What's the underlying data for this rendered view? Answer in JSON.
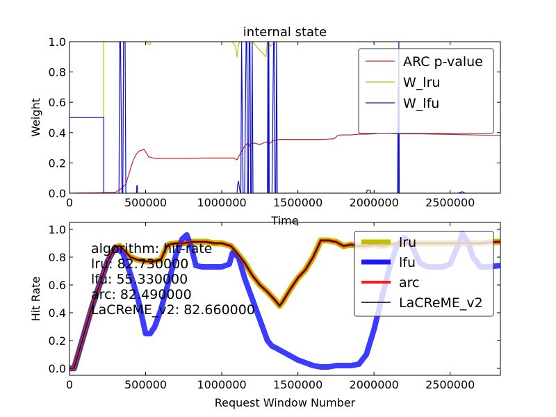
{
  "chart_data": [
    {
      "type": "line",
      "title": "internal state",
      "xlabel": "Time",
      "ylabel": "Weight",
      "xlim": [
        0,
        2830000
      ],
      "ylim": [
        0.0,
        1.0
      ],
      "grid": false,
      "legend_position": "top-right",
      "x_ticks": [
        0,
        500000,
        1000000,
        1500000,
        2000000,
        2500000
      ],
      "x_tick_labels": [
        "0",
        "500000",
        "1000000",
        "1500000",
        "2000000",
        "2500000"
      ],
      "y_ticks": [
        0.0,
        0.2,
        0.4,
        0.6,
        0.8,
        1.0
      ],
      "y_tick_labels": [
        "0.0",
        "0.2",
        "0.4",
        "0.6",
        "0.8",
        "1.0"
      ],
      "series": [
        {
          "name": "ARC p-value",
          "color": "#d62020",
          "x": [
            0,
            300000,
            340000,
            370000,
            400000,
            420000,
            440000,
            460000,
            490000,
            520000,
            560000,
            600000,
            700000,
            800000,
            900000,
            1000000,
            1080000,
            1100000,
            1110000,
            1150000,
            1170000,
            1180000,
            1190000,
            1220000,
            1250000,
            1270000,
            1300000,
            1310000,
            1340000,
            1360000,
            1380000,
            1400000,
            1450000,
            1500000,
            1550000,
            1600000,
            1650000,
            1700000,
            1740000,
            1760000,
            1780000,
            1800000,
            1850000,
            1900000,
            1950000,
            2000000,
            2030000,
            2100000,
            2150000,
            2200000,
            2300000,
            2400000,
            2500000,
            2600000,
            2700000,
            2800000,
            2830000
          ],
          "y": [
            0.0,
            0.005,
            0.03,
            0.06,
            0.16,
            0.22,
            0.26,
            0.28,
            0.29,
            0.24,
            0.23,
            0.23,
            0.23,
            0.23,
            0.232,
            0.232,
            0.232,
            0.22,
            0.24,
            0.31,
            0.33,
            0.31,
            0.33,
            0.33,
            0.32,
            0.33,
            0.34,
            0.325,
            0.35,
            0.35,
            0.355,
            0.355,
            0.355,
            0.355,
            0.355,
            0.355,
            0.355,
            0.357,
            0.36,
            0.38,
            0.385,
            0.385,
            0.385,
            0.39,
            0.39,
            0.392,
            0.395,
            0.395,
            0.392,
            0.392,
            0.392,
            0.39,
            0.388,
            0.386,
            0.384,
            0.382,
            0.38
          ]
        },
        {
          "name": "W_lru",
          "color": "#bfbf00",
          "x": [
            0,
            225000,
            225000,
            500000,
            530000,
            535000,
            1070000,
            1090000,
            1100000,
            1110000,
            1120000,
            1200000,
            1290000,
            1300000,
            1320000,
            1350000,
            1700000,
            1900000,
            2100000,
            2830000
          ],
          "y": [
            0.5,
            0.5,
            1.0,
            1.0,
            0.98,
            1.0,
            1.0,
            0.97,
            0.9,
            0.98,
            1.0,
            1.0,
            0.9,
            1.0,
            0.97,
            1.0,
            1.0,
            1.0,
            1.0,
            1.0
          ]
        },
        {
          "name": "W_lfu",
          "color": "#1010d0",
          "x": [
            0,
            225000,
            225000,
            325000,
            330000,
            335000,
            345000,
            350000,
            355000,
            365000,
            370000,
            375000,
            440000,
            442000,
            446000,
            448000,
            1100000,
            1105000,
            1110000,
            1115000,
            1120000,
            1125000,
            1130000,
            1140000,
            1150000,
            1160000,
            1165000,
            1170000,
            1175000,
            1180000,
            1185000,
            1190000,
            1195000,
            1200000,
            1205000,
            1300000,
            1303000,
            1306000,
            1309000,
            1312000,
            1330000,
            1340000,
            1345000,
            1350000,
            1355000,
            1360000,
            1365000,
            1375000,
            1950000,
            1955000,
            1975000,
            1980000,
            2155000,
            2158000,
            2160000,
            2163000,
            2166000,
            2550000,
            2580000,
            2600000,
            2830000
          ],
          "y": [
            0.5,
            0.5,
            0.0,
            0.0,
            1.0,
            1.0,
            0.0,
            0.0,
            1.0,
            1.0,
            0.0,
            0.0,
            0.0,
            0.05,
            0.05,
            0.0,
            0.0,
            0.06,
            0.08,
            0.04,
            0.01,
            0.0,
            1.0,
            0.0,
            0.0,
            1.0,
            1.0,
            0.0,
            0.0,
            1.0,
            1.0,
            0.0,
            0.0,
            1.0,
            0.0,
            0.0,
            1.0,
            0.0,
            1.0,
            0.0,
            0.0,
            1.0,
            1.0,
            0.0,
            0.0,
            1.0,
            0.0,
            0.0,
            0.0,
            0.02,
            0.02,
            0.0,
            0.0,
            0.7,
            0.0,
            1.0,
            0.0,
            0.0,
            0.01,
            0.0,
            0.0
          ]
        }
      ]
    },
    {
      "type": "line",
      "title": "",
      "xlabel": "Request Window Number",
      "ylabel": "Hit Rate",
      "xlim": [
        0,
        2830000
      ],
      "ylim": [
        -0.05,
        1.05
      ],
      "grid": false,
      "legend_position": "top-right",
      "x_ticks": [
        0,
        500000,
        1000000,
        1500000,
        2000000,
        2500000
      ],
      "x_tick_labels": [
        "0",
        "500000",
        "1000000",
        "1500000",
        "2000000",
        "2500000"
      ],
      "y_ticks": [
        0.0,
        0.2,
        0.4,
        0.6,
        0.8,
        1.0
      ],
      "y_tick_labels": [
        "0.0",
        "0.2",
        "0.4",
        "0.6",
        "0.8",
        "1.0"
      ],
      "annotation_lines": [
        "algorithm:  hit-rate",
        "lru:  82.730000",
        "lfu:  55.330000",
        "arc:  82.490000",
        "LaCReME_v2:  82.660000"
      ],
      "series": [
        {
          "name": "lru",
          "color": "#bfbf00",
          "width": 9,
          "x": [
            0,
            30000,
            150000,
            250000,
            300000,
            330000,
            350000,
            400000,
            450000,
            500000,
            550000,
            600000,
            640000,
            650000,
            700000,
            750000,
            800000,
            850000,
            900000,
            950000,
            1000000,
            1060000,
            1100000,
            1150000,
            1200000,
            1250000,
            1300000,
            1350000,
            1380000,
            1400000,
            1450000,
            1500000,
            1550000,
            1600000,
            1630000,
            1650000,
            1700000,
            1750000,
            1800000,
            1850000,
            1900000,
            1950000,
            2000000,
            2050000,
            2100000,
            2200000,
            2300000,
            2400000,
            2500000,
            2600000,
            2700000,
            2800000,
            2830000
          ],
          "y": [
            0.0,
            0.0,
            0.45,
            0.77,
            0.87,
            0.88,
            0.86,
            0.8,
            0.78,
            0.77,
            0.77,
            0.78,
            0.88,
            0.89,
            0.9,
            0.9,
            0.91,
            0.91,
            0.91,
            0.9,
            0.9,
            0.88,
            0.83,
            0.76,
            0.67,
            0.6,
            0.55,
            0.49,
            0.45,
            0.48,
            0.57,
            0.65,
            0.71,
            0.8,
            0.87,
            0.92,
            0.92,
            0.91,
            0.88,
            0.89,
            0.88,
            0.88,
            0.89,
            0.88,
            0.89,
            0.9,
            0.9,
            0.9,
            0.9,
            0.9,
            0.9,
            0.91,
            0.91
          ]
        },
        {
          "name": "lfu",
          "color": "#1a1aff",
          "width": 8,
          "x": [
            0,
            30000,
            150000,
            250000,
            300000,
            350000,
            400000,
            450000,
            480000,
            500000,
            530000,
            560000,
            600000,
            650000,
            700000,
            740000,
            770000,
            800000,
            830000,
            870000,
            900000,
            1000000,
            1050000,
            1070000,
            1110000,
            1150000,
            1200000,
            1250000,
            1300000,
            1330000,
            1350000,
            1400000,
            1450000,
            1500000,
            1550000,
            1600000,
            1650000,
            1700000,
            1750000,
            1800000,
            1850000,
            1900000,
            1950000,
            2000000,
            2050000,
            2100000,
            2150000,
            2200000,
            2250000,
            2300000,
            2350000,
            2400000,
            2450000,
            2500000,
            2550000,
            2580000,
            2620000,
            2650000,
            2700000,
            2750000,
            2830000
          ],
          "y": [
            0.0,
            0.0,
            0.45,
            0.77,
            0.87,
            0.83,
            0.68,
            0.5,
            0.35,
            0.25,
            0.25,
            0.3,
            0.42,
            0.62,
            0.82,
            0.93,
            0.96,
            0.87,
            0.74,
            0.73,
            0.73,
            0.73,
            0.75,
            0.83,
            0.8,
            0.65,
            0.5,
            0.35,
            0.2,
            0.16,
            0.15,
            0.12,
            0.09,
            0.06,
            0.04,
            0.02,
            0.01,
            0.01,
            0.02,
            0.02,
            0.02,
            0.03,
            0.1,
            0.28,
            0.5,
            0.72,
            0.88,
            0.94,
            0.88,
            0.76,
            0.73,
            0.73,
            0.73,
            0.75,
            0.88,
            0.97,
            0.9,
            0.8,
            0.73,
            0.73,
            0.74
          ]
        },
        {
          "name": "arc",
          "color": "#ff1a1a",
          "width": 4,
          "x": [
            0,
            30000,
            150000,
            250000,
            300000,
            330000,
            350000,
            400000,
            450000,
            500000,
            550000,
            600000,
            640000,
            650000,
            700000,
            750000,
            800000,
            850000,
            900000,
            950000,
            1000000,
            1060000,
            1100000,
            1150000,
            1200000,
            1250000,
            1300000,
            1350000,
            1380000,
            1400000,
            1450000,
            1500000,
            1550000,
            1600000,
            1630000,
            1650000,
            1700000,
            1750000,
            1800000,
            1850000,
            1900000,
            1950000,
            2000000,
            2050000,
            2100000,
            2200000,
            2300000,
            2400000,
            2500000,
            2600000,
            2700000,
            2800000,
            2830000
          ],
          "y": [
            0.0,
            0.0,
            0.45,
            0.77,
            0.87,
            0.88,
            0.86,
            0.8,
            0.78,
            0.77,
            0.77,
            0.78,
            0.88,
            0.89,
            0.9,
            0.9,
            0.91,
            0.91,
            0.91,
            0.9,
            0.9,
            0.88,
            0.83,
            0.76,
            0.67,
            0.6,
            0.55,
            0.49,
            0.45,
            0.48,
            0.57,
            0.65,
            0.71,
            0.8,
            0.87,
            0.92,
            0.92,
            0.91,
            0.88,
            0.89,
            0.88,
            0.88,
            0.89,
            0.88,
            0.89,
            0.9,
            0.9,
            0.9,
            0.9,
            0.9,
            0.9,
            0.91,
            0.91
          ]
        },
        {
          "name": "LaCReME_v2",
          "color": "#000000",
          "width": 1.5,
          "x": [
            0,
            30000,
            150000,
            250000,
            300000,
            330000,
            350000,
            400000,
            450000,
            500000,
            550000,
            600000,
            640000,
            650000,
            700000,
            750000,
            800000,
            850000,
            900000,
            950000,
            1000000,
            1060000,
            1100000,
            1150000,
            1200000,
            1250000,
            1300000,
            1350000,
            1380000,
            1400000,
            1450000,
            1500000,
            1550000,
            1600000,
            1630000,
            1650000,
            1700000,
            1750000,
            1800000,
            1850000,
            1900000,
            1950000,
            2000000,
            2050000,
            2100000,
            2200000,
            2300000,
            2400000,
            2500000,
            2600000,
            2700000,
            2800000,
            2830000
          ],
          "y": [
            0.0,
            0.0,
            0.45,
            0.77,
            0.87,
            0.88,
            0.86,
            0.8,
            0.78,
            0.77,
            0.77,
            0.78,
            0.88,
            0.89,
            0.9,
            0.9,
            0.91,
            0.91,
            0.91,
            0.9,
            0.9,
            0.88,
            0.83,
            0.76,
            0.67,
            0.6,
            0.55,
            0.49,
            0.45,
            0.48,
            0.57,
            0.65,
            0.71,
            0.8,
            0.87,
            0.92,
            0.92,
            0.91,
            0.88,
            0.89,
            0.88,
            0.88,
            0.89,
            0.88,
            0.89,
            0.9,
            0.9,
            0.9,
            0.9,
            0.9,
            0.9,
            0.91,
            0.91
          ]
        }
      ]
    }
  ]
}
